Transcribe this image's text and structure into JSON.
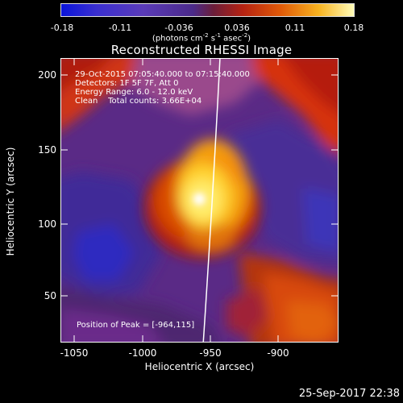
{
  "colorbar": {
    "tick_labels": [
      "-0.18",
      "-0.11",
      "-0.036",
      "0.036",
      "0.11",
      "0.18"
    ],
    "units_label": {
      "prefix": "(photons cm",
      "exp1": "-2",
      "mid": " s",
      "exp2": "-1",
      "mid2": " asec",
      "exp3": "-2",
      "suffix": ")"
    }
  },
  "title": "Reconstructed RHESSI Image",
  "info_lines": [
    "29-Oct-2015 07:05:40.000 to 07:15:40.000",
    "Detectors: 1F 5F 7F, Att 0",
    "Energy Range: 6.0 - 12.0 keV",
    "Clean    Total counts: 3.66E+04"
  ],
  "peak_label": "Position of Peak = [-964,115]",
  "x_axis": {
    "label": "Heliocentric X (arcsec)",
    "tick_labels": [
      "-1050",
      "-1000",
      "-950",
      "-900"
    ],
    "range": [
      -1070,
      -865
    ]
  },
  "y_axis": {
    "label": "Heliocentric Y (arcsec)",
    "tick_labels": [
      "50",
      "100",
      "150",
      "200"
    ],
    "range": [
      16,
      210
    ]
  },
  "timestamp": "25-Sep-2017 22:38",
  "colors": {
    "background": "#000000",
    "foreground": "#ffffff"
  }
}
